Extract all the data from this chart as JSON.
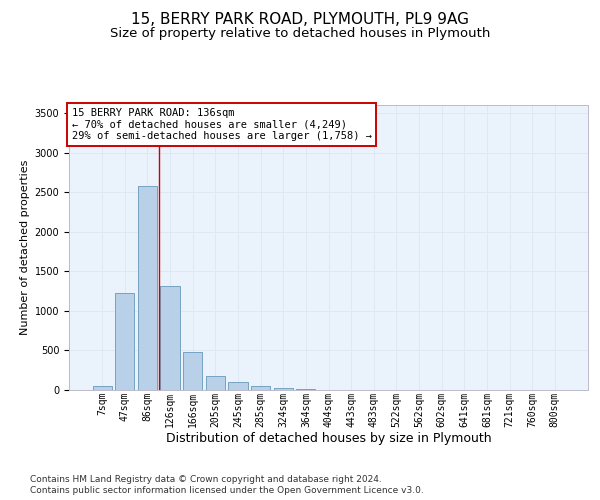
{
  "title1": "15, BERRY PARK ROAD, PLYMOUTH, PL9 9AG",
  "title2": "Size of property relative to detached houses in Plymouth",
  "xlabel": "Distribution of detached houses by size in Plymouth",
  "ylabel": "Number of detached properties",
  "categories": [
    "7sqm",
    "47sqm",
    "86sqm",
    "126sqm",
    "166sqm",
    "205sqm",
    "245sqm",
    "285sqm",
    "324sqm",
    "364sqm",
    "404sqm",
    "443sqm",
    "483sqm",
    "522sqm",
    "562sqm",
    "602sqm",
    "641sqm",
    "681sqm",
    "721sqm",
    "760sqm",
    "800sqm"
  ],
  "values": [
    50,
    1220,
    2580,
    1310,
    480,
    175,
    95,
    55,
    28,
    10,
    5,
    0,
    0,
    0,
    0,
    0,
    0,
    0,
    0,
    0,
    0
  ],
  "bar_color": "#b8d0e8",
  "bar_edge_color": "#6699bb",
  "grid_color": "#dde8f4",
  "background_color": "#eaf2fb",
  "annotation_text": "15 BERRY PARK ROAD: 136sqm\n← 70% of detached houses are smaller (4,249)\n29% of semi-detached houses are larger (1,758) →",
  "annotation_box_facecolor": "#ffffff",
  "annotation_box_edgecolor": "#cc0000",
  "vline_color": "#cc0000",
  "vline_position": 2.5,
  "ylim": [
    0,
    3600
  ],
  "yticks": [
    0,
    500,
    1000,
    1500,
    2000,
    2500,
    3000,
    3500
  ],
  "footnote1": "Contains HM Land Registry data © Crown copyright and database right 2024.",
  "footnote2": "Contains public sector information licensed under the Open Government Licence v3.0.",
  "title1_fontsize": 11,
  "title2_fontsize": 9.5,
  "xlabel_fontsize": 9,
  "ylabel_fontsize": 8,
  "tick_fontsize": 7,
  "annot_fontsize": 7.5,
  "footnote_fontsize": 6.5
}
